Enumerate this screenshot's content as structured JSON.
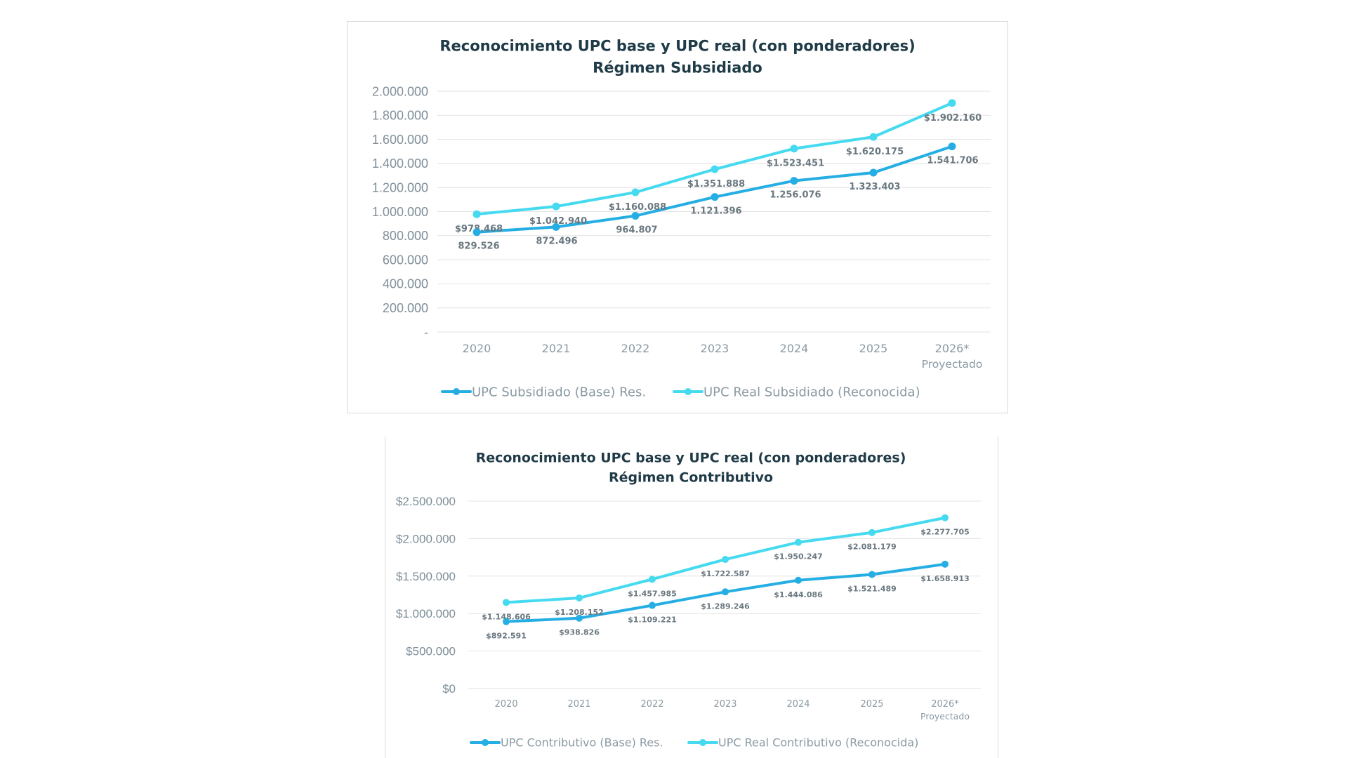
{
  "colors": {
    "base": "#25aee3",
    "real": "#45daf0"
  },
  "chart_data": [
    {
      "type": "line",
      "title": [
        "Reconocimiento UPC base y UPC real (con ponderadores)",
        "Régimen Subsidiado"
      ],
      "categories": [
        "2020",
        "2021",
        "2022",
        "2023",
        "2024",
        "2025",
        "2026*"
      ],
      "category_note": "Proyectado",
      "ylim": [
        0,
        2000000
      ],
      "yticks": [
        0,
        200000,
        400000,
        600000,
        800000,
        1000000,
        1200000,
        1400000,
        1600000,
        1800000,
        2000000
      ],
      "ytick_labels": [
        "-",
        "200.000",
        "400.000",
        "600.000",
        "800.000",
        "1.000.000",
        "1.200.000",
        "1.400.000",
        "1.600.000",
        "1.800.000",
        "2.000.000"
      ],
      "xlabel": "",
      "ylabel": "",
      "series": [
        {
          "name": "UPC Subsidiado (Base) Res.",
          "values": [
            829526,
            872496,
            964807,
            1121396,
            1256076,
            1323403,
            1541706
          ],
          "labels": [
            "829.526",
            "872.496",
            "964.807",
            "1.121.396",
            "1.256.076",
            "1.323.403",
            "1.541.706"
          ]
        },
        {
          "name": "UPC Real Subsidiado (Reconocida)",
          "values": [
            978468,
            1042940,
            1160088,
            1351888,
            1523451,
            1620175,
            1902160
          ],
          "labels": [
            "$978.468",
            "$1.042.940",
            "$1.160.088",
            "$1.351.888",
            "$1.523.451",
            "$1.620.175",
            "$1.902.160"
          ]
        }
      ]
    },
    {
      "type": "line",
      "title": [
        "Reconocimiento UPC base y UPC real (con ponderadores)",
        "Régimen Contributivo"
      ],
      "categories": [
        "2020",
        "2021",
        "2022",
        "2023",
        "2024",
        "2025",
        "2026*"
      ],
      "category_note": "Proyectado",
      "ylim": [
        0,
        2500000
      ],
      "yticks": [
        0,
        500000,
        1000000,
        1500000,
        2000000,
        2500000
      ],
      "ytick_labels": [
        "$0",
        "$500.000",
        "$1.000.000",
        "$1.500.000",
        "$2.000.000",
        "$2.500.000"
      ],
      "xlabel": "",
      "ylabel": "",
      "series": [
        {
          "name": "UPC Contributivo (Base) Res.",
          "values": [
            892591,
            938826,
            1109221,
            1289246,
            1444086,
            1521489,
            1658913
          ],
          "labels": [
            "$892.591",
            "$938.826",
            "$1.109.221",
            "$1.289.246",
            "$1.444.086",
            "$1.521.489",
            "$1.658.913"
          ]
        },
        {
          "name": "UPC Real Contributivo (Reconocida)",
          "values": [
            1148606,
            1208152,
            1457985,
            1722587,
            1950247,
            2081179,
            2277705
          ],
          "labels": [
            "$1.148.606",
            "$1.208.152",
            "$1.457.985",
            "$1.722.587",
            "$1.950.247",
            "$2.081.179",
            "$2.277.705"
          ]
        }
      ]
    }
  ]
}
